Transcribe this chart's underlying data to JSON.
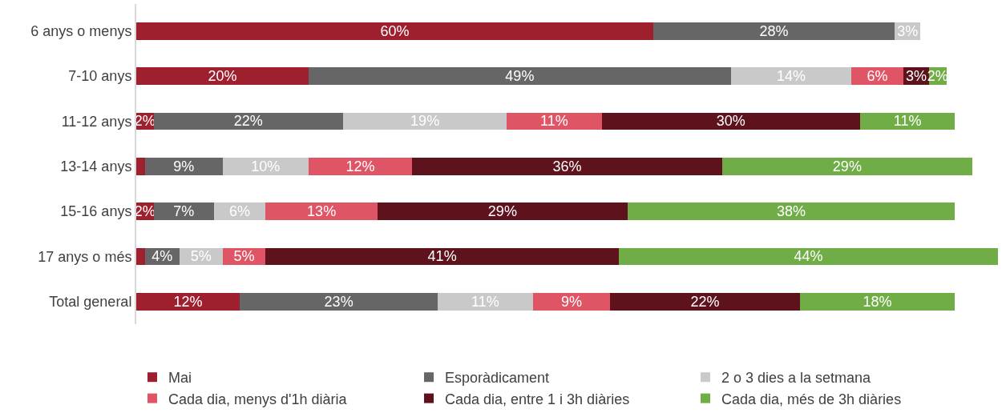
{
  "chart_data": {
    "type": "bar",
    "orientation": "horizontal",
    "stacked": true,
    "legend": "bottom",
    "categories": [
      "6 anys o menys",
      "7-10 anys",
      "11-12 anys",
      "13-14 anys",
      "15-16 anys",
      "17 anys o més",
      "Total general"
    ],
    "series": [
      {
        "name": "Mai",
        "color": "#9e1f2e",
        "values": [
          60,
          20,
          2,
          1,
          2,
          1,
          12
        ],
        "value_labels": [
          "60%",
          "20%",
          "2%",
          null,
          "2%",
          null,
          "12%"
        ]
      },
      {
        "name": "Esporàdicament",
        "color": "#666666",
        "values": [
          28,
          49,
          22,
          9,
          7,
          4,
          23
        ],
        "value_labels": [
          "28%",
          "49%",
          "22%",
          "9%",
          "7%",
          "4%",
          "23%"
        ]
      },
      {
        "name": "2 o 3 dies a la setmana",
        "color": "#c9c9c9",
        "values": [
          3,
          14,
          19,
          10,
          6,
          5,
          11
        ],
        "value_labels": [
          "3%",
          "14%",
          "19%",
          "10%",
          "6%",
          "5%",
          "11%"
        ]
      },
      {
        "name": "Cada dia, menys d'1h diària",
        "color": "#e05565",
        "values": [
          0,
          6,
          11,
          12,
          13,
          5,
          9
        ],
        "value_labels": [
          null,
          "6%",
          "11%",
          "12%",
          "13%",
          "5%",
          "9%"
        ]
      },
      {
        "name": "Cada dia, entre 1 i 3h diàries",
        "color": "#5e121c",
        "values": [
          null,
          3,
          30,
          36,
          29,
          41,
          22
        ],
        "value_labels": [
          null,
          "3%",
          "30%",
          "36%",
          "29%",
          "41%",
          "22%"
        ]
      },
      {
        "name": "Cada dia, més de 3h diàries",
        "color": "#70ad47",
        "values": [
          null,
          2,
          11,
          29,
          38,
          44,
          18
        ],
        "value_labels": [
          null,
          "2%",
          "11%",
          "29%",
          "38%",
          "44%",
          "18%"
        ]
      }
    ]
  }
}
